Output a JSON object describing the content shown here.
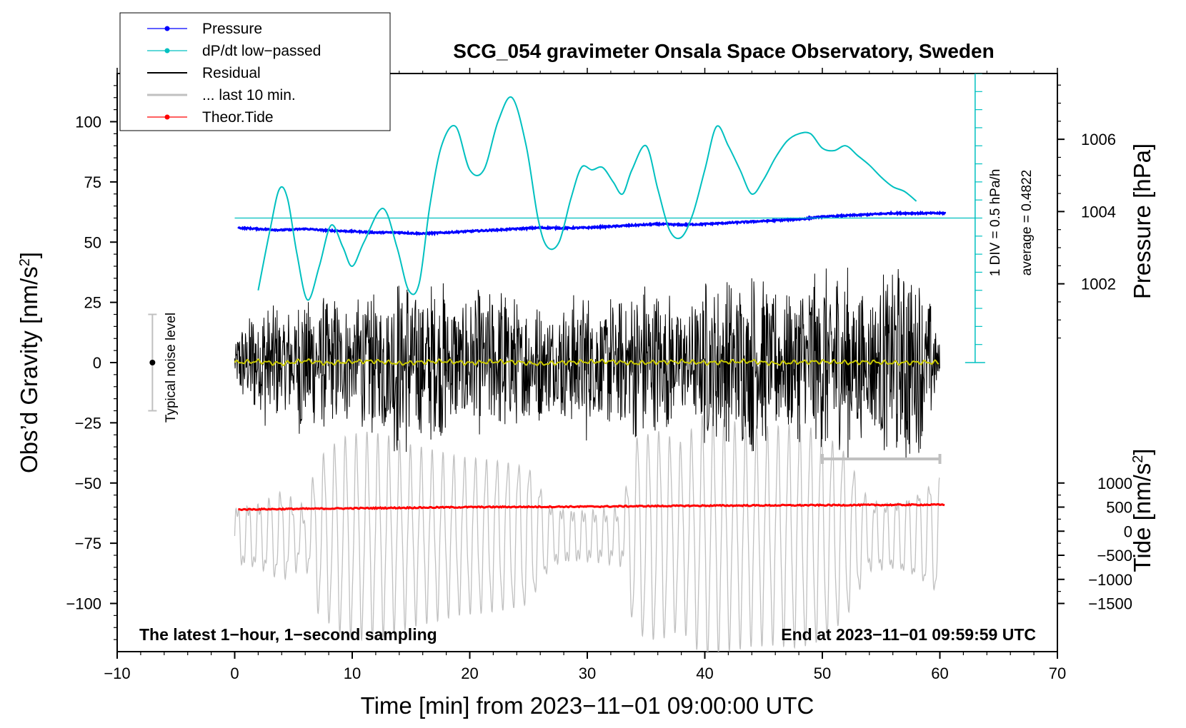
{
  "chart_data": {
    "type": "line",
    "title": "SCG_054 gravimeter Onsala Space Observatory, Sweden",
    "xlabel": "Time [min] from 2023−11−01 09:00:00 UTC",
    "ylabel_left": "Obs’d Gravity [nm/s",
    "ylabel_left_sup": "2",
    "ylabel_left_end": "]",
    "ylabel_right_pressure": "Pressure [hPa]",
    "ylabel_right_tide": "Tide [nm/s",
    "ylabel_right_tide_sup": "2",
    "ylabel_right_tide_end": "]",
    "xlim": [
      -10,
      70
    ],
    "ylim": [
      -120,
      120
    ],
    "x_ticks": [
      "−10",
      "0",
      "10",
      "20",
      "30",
      "40",
      "50",
      "60",
      "70"
    ],
    "x_tick_values": [
      -10,
      0,
      10,
      20,
      30,
      40,
      50,
      60,
      70
    ],
    "y_ticks": [
      "100",
      "75",
      "50",
      "25",
      "0",
      "−25",
      "−50",
      "−75",
      "−100"
    ],
    "y_tick_values": [
      100,
      75,
      50,
      25,
      0,
      -25,
      -50,
      -75,
      -100
    ],
    "pressure_ticks": [
      "1006",
      "1004",
      "1002"
    ],
    "pressure_tick_values": [
      1006,
      1004,
      1002
    ],
    "pressure_axis": {
      "value_at_gravity_0": 999.82,
      "hpa_per_gravity_unit": 0.06667
    },
    "tide_ticks": [
      "1000",
      "500",
      "0",
      "−500",
      "−1000",
      "−1500"
    ],
    "tide_tick_values": [
      1000,
      500,
      0,
      -500,
      -1000,
      -1500
    ],
    "tide_axis": {
      "value_at_gravity_0": 3500,
      "nm_per_gravity_unit": 50
    },
    "legend": [
      {
        "label": "Pressure",
        "color": "#0000ff",
        "marker": true
      },
      {
        "label": "dP/dt low−passed",
        "color": "#00c0c0",
        "marker": true
      },
      {
        "label": "Residual",
        "color": "#000000",
        "marker": false
      },
      {
        "label": "... last 10 min.",
        "color": "#c0c0c0",
        "marker": false
      },
      {
        "label": "Theor.Tide",
        "color": "#ff0000",
        "marker": true
      }
    ],
    "annotations": {
      "left": "The latest 1−hour, 1−second sampling",
      "right": "End at 2023−11−01 09:59:59 UTC",
      "noise": "Typical noise level",
      "dpdt_scale": "1 DIV = 0.5 hPa/h",
      "dpdt_average": "average = 0.4822"
    },
    "noise_bar": {
      "x": -7,
      "center": 0,
      "half_range": 20
    },
    "dpdt_zero_level": 60,
    "dpdt_scale_axis": {
      "x": 63,
      "y_bottom": 0,
      "y_top": 120,
      "divisions": 16
    },
    "last10_bar": {
      "x_start": 50,
      "x_end": 60,
      "y": -40
    },
    "series": [
      {
        "name": "Pressure",
        "color": "#0000ff",
        "unit": "gravity-axis",
        "x": [
          0,
          2,
          4,
          6,
          8,
          10,
          12,
          14,
          16,
          18,
          20,
          22,
          24,
          26,
          28,
          30,
          32,
          34,
          36,
          38,
          40,
          42,
          44,
          46,
          48,
          50,
          52,
          54,
          56,
          58,
          60
        ],
        "y": [
          56,
          55.5,
          55,
          55.5,
          54.8,
          54.5,
          54,
          54,
          53.5,
          54,
          54.5,
          55,
          55.5,
          56,
          55.8,
          56,
          56.5,
          57,
          57.5,
          57.2,
          57.5,
          58,
          58.5,
          59,
          59.5,
          60.5,
          61,
          61.5,
          62,
          62,
          62
        ]
      },
      {
        "name": "dP/dt low-passed",
        "color": "#00c0c0",
        "unit": "gravity-axis",
        "x": [
          2,
          3,
          3.8,
          4.5,
          5.3,
          6.2,
          7.2,
          8.2,
          9.2,
          10,
          11,
          12.6,
          13.8,
          14.8,
          15.7,
          16.6,
          17.6,
          18.8,
          20,
          21.2,
          22.4,
          23.6,
          24.8,
          25.8,
          26.6,
          27.6,
          28.6,
          29.5,
          30.4,
          31.3,
          32.2,
          33,
          33.8,
          35,
          36,
          37,
          38,
          39,
          40,
          41,
          42,
          43,
          44,
          45,
          46,
          47,
          48,
          49,
          50,
          51,
          52,
          53,
          54,
          55,
          56,
          57,
          58
        ],
        "y": [
          30,
          55,
          72,
          68,
          45,
          26,
          40,
          57,
          48,
          40,
          50,
          64,
          48,
          30,
          33,
          65,
          90,
          98,
          80,
          80,
          100,
          110,
          90,
          60,
          48,
          50,
          68,
          81,
          80,
          81,
          75,
          70,
          80,
          90,
          72,
          55,
          52,
          62,
          80,
          98,
          90,
          80,
          70,
          76,
          85,
          92,
          95,
          95,
          89,
          88,
          90,
          86,
          82,
          77,
          73,
          71,
          67
        ]
      },
      {
        "name": "Residual",
        "color": "#000000",
        "unit": "gravity-axis",
        "x": [
          0,
          2,
          4,
          6,
          8,
          10,
          12,
          14,
          16,
          18,
          20,
          22,
          24,
          26,
          28,
          30,
          32,
          34,
          36,
          38,
          40,
          42,
          44,
          46,
          48,
          50,
          52,
          54,
          56,
          58,
          60
        ],
        "y": [
          0,
          0.5,
          -0.5,
          0.8,
          -0.3,
          0.4,
          0.6,
          -0.4,
          0.3,
          0.5,
          -0.2,
          0.4,
          0.2,
          -0.6,
          0.1,
          0.3,
          0.5,
          -0.3,
          0.2,
          0.4,
          -0.1,
          0.3,
          0.5,
          -0.4,
          0.2,
          0.4,
          0,
          0.3,
          -0.2,
          0.1,
          0
        ]
      },
      {
        "name": "Theor.Tide",
        "color": "#ff0000",
        "unit": "gravity-axis",
        "x": [
          0,
          10,
          20,
          30,
          40,
          50,
          60
        ],
        "y": [
          -61,
          -60.5,
          -60,
          -59.8,
          -59.4,
          -59.2,
          -59
        ]
      }
    ]
  }
}
